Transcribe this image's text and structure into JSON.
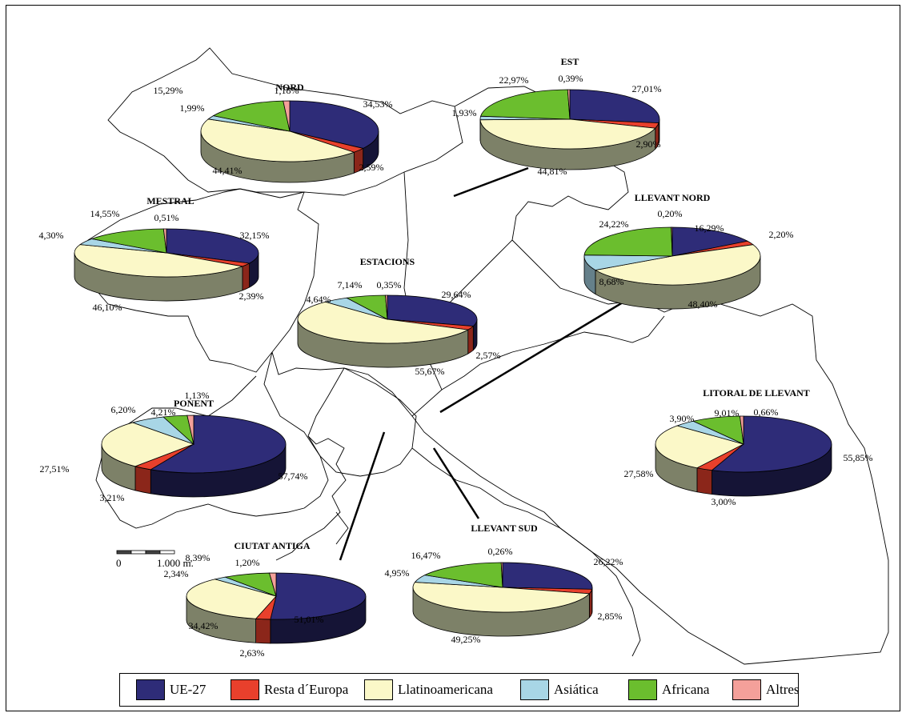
{
  "legend": [
    {
      "name": "UE-27",
      "color": "#2E2C78"
    },
    {
      "name": "Resta d´Europa",
      "color": "#E8402C"
    },
    {
      "name": "Llatinoamericana",
      "color": "#FBF8C8"
    },
    {
      "name": "Asiática",
      "color": "#A8D6E6"
    },
    {
      "name": "Africana",
      "color": "#6BBE2E"
    },
    {
      "name": "Altres",
      "color": "#F4A09A"
    }
  ],
  "scale": {
    "zero_label": "0",
    "end_label": "1.000 m."
  },
  "chart_data": [
    {
      "type": "pie",
      "title": "NORD",
      "series": [
        {
          "values": [
            34.53,
            2.59,
            44.41,
            1.99,
            15.29,
            1.18
          ]
        }
      ],
      "labels": [
        "34,53%",
        "2,59%",
        "44,41%",
        "1,99%",
        "15,29%",
        "1,18%"
      ]
    },
    {
      "type": "pie",
      "title": "EST",
      "series": [
        {
          "values": [
            27.01,
            2.9,
            44.81,
            1.93,
            22.97,
            0.39
          ]
        }
      ],
      "labels": [
        "27,01%",
        "2,90%",
        "44,81%",
        "1,93%",
        "22,97%",
        "0,39%"
      ]
    },
    {
      "type": "pie",
      "title": "MESTRAL",
      "series": [
        {
          "values": [
            32.15,
            2.39,
            46.1,
            4.3,
            14.55,
            0.51
          ]
        }
      ],
      "labels": [
        "32,15%",
        "2,39%",
        "46,10%",
        "4,30%",
        "14,55%",
        "0,51%"
      ]
    },
    {
      "type": "pie",
      "title": "LLEVANT NORD",
      "series": [
        {
          "values": [
            16.29,
            2.2,
            48.4,
            8.68,
            24.22,
            0.2
          ]
        }
      ],
      "labels": [
        "16,29%",
        "2,20%",
        "48,40%",
        "8,68%",
        "24,22%",
        "0,20%"
      ]
    },
    {
      "type": "pie",
      "title": "ESTACIONS",
      "series": [
        {
          "values": [
            29.64,
            2.57,
            55.67,
            4.64,
            7.14,
            0.35
          ]
        }
      ],
      "labels": [
        "29,64%",
        "2,57%",
        "55,67%",
        "4,64%",
        "7,14%",
        "0,35%"
      ]
    },
    {
      "type": "pie",
      "title": "PONENT",
      "series": [
        {
          "values": [
            57.74,
            3.21,
            27.51,
            6.2,
            4.21,
            1.13
          ]
        }
      ],
      "labels": [
        "57,74%",
        "3,21%",
        "27,51%",
        "6,20%",
        "4,21%",
        "1,13%"
      ]
    },
    {
      "type": "pie",
      "title": "LITORAL DE LLEVANT",
      "series": [
        {
          "values": [
            55.85,
            3.0,
            27.58,
            3.9,
            9.01,
            0.66
          ]
        }
      ],
      "labels": [
        "55,85%",
        "3,00%",
        "27,58%",
        "3,90%",
        "9,01%",
        "0,66%"
      ]
    },
    {
      "type": "pie",
      "title": "CIUTAT ANTIGA",
      "series": [
        {
          "values": [
            51.01,
            2.63,
            34.42,
            2.34,
            8.39,
            1.2
          ]
        }
      ],
      "labels": [
        "51,01%",
        "2,63%",
        "34,42%",
        "2,34%",
        "8,39%",
        "1,20%"
      ]
    },
    {
      "type": "pie",
      "title": "LLEVANT SUD",
      "series": [
        {
          "values": [
            26.22,
            2.85,
            49.25,
            4.95,
            16.47,
            0.26
          ]
        }
      ],
      "labels": [
        "26,22%",
        "2,85%",
        "49,25%",
        "4,95%",
        "16,47%",
        "0,26%"
      ]
    }
  ]
}
